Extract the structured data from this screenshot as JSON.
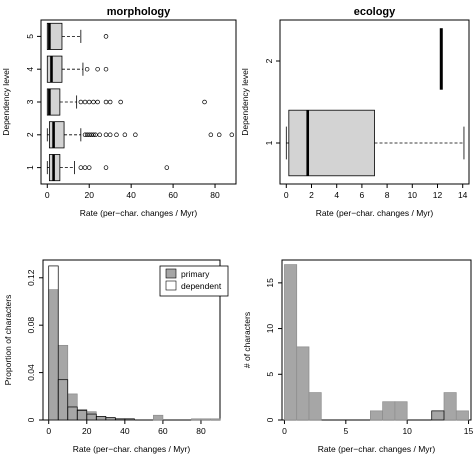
{
  "chart_data": [
    {
      "type": "box",
      "title": "morphology",
      "xlabel": "Rate (per−char. changes / Myr)",
      "ylabel": "Dependency level",
      "xlim": [
        -3,
        90
      ],
      "xticks": [
        0,
        20,
        40,
        60,
        80
      ],
      "categories": [
        "1",
        "2",
        "3",
        "4",
        "5"
      ],
      "boxes": [
        {
          "level": "1",
          "whisker_low": 0,
          "q1": 1,
          "median": 3,
          "q3": 6,
          "whisker_high": 13,
          "outliers": [
            16,
            18,
            20,
            28,
            57
          ]
        },
        {
          "level": "2",
          "whisker_low": 0,
          "q1": 1,
          "median": 3,
          "q3": 8,
          "whisker_high": 16,
          "outliers": [
            18,
            19,
            20,
            21,
            22,
            23,
            25,
            28,
            30,
            33,
            37,
            42,
            78,
            82,
            88
          ]
        },
        {
          "level": "3",
          "whisker_low": 0,
          "q1": 0,
          "median": 1,
          "q3": 6,
          "whisker_high": 14,
          "outliers": [
            16,
            18,
            20,
            22,
            24,
            28,
            30,
            35,
            75
          ]
        },
        {
          "level": "4",
          "whisker_low": 0,
          "q1": 0,
          "median": 2,
          "q3": 7,
          "whisker_high": 17,
          "outliers": [
            19,
            24,
            28
          ]
        },
        {
          "level": "5",
          "whisker_low": 0,
          "q1": 0,
          "median": 1,
          "q3": 7,
          "whisker_high": 16,
          "outliers": [
            28
          ]
        }
      ]
    },
    {
      "type": "box",
      "title": "ecology",
      "xlabel": "Rate (per−char. changes / Myr)",
      "ylabel": "Dependency level",
      "xlim": [
        -0.5,
        14.5
      ],
      "xticks": [
        0,
        2,
        4,
        6,
        8,
        10,
        12,
        14
      ],
      "categories": [
        "1",
        "2"
      ],
      "boxes": [
        {
          "level": "1",
          "whisker_low": 0,
          "q1": 0.2,
          "median": 1.7,
          "q3": 7,
          "whisker_high": 14.1,
          "outliers": []
        },
        {
          "level": "2",
          "whisker_low": 12.3,
          "q1": 12.3,
          "median": 12.3,
          "q3": 12.3,
          "whisker_high": 12.3,
          "outliers": [],
          "span": [
            1.65,
            2.4
          ]
        }
      ]
    },
    {
      "type": "bar",
      "subtype": "histogram",
      "xlabel": "Rate (per−char. changes / Myr)",
      "ylabel": "Proportion of characters",
      "xlim": [
        -3,
        90
      ],
      "ylim": [
        0,
        0.135
      ],
      "xticks": [
        0,
        20,
        40,
        60,
        80
      ],
      "yticks": [
        0.0,
        0.04,
        0.08,
        0.12
      ],
      "bin_width": 5,
      "bin_starts": [
        0,
        5,
        10,
        15,
        20,
        25,
        30,
        35,
        40,
        45,
        50,
        55,
        60,
        65,
        70,
        75,
        80,
        85
      ],
      "legend_position": "top-right",
      "series": [
        {
          "name": "primary",
          "color": "#a6a6a6",
          "values": [
            0.11,
            0.063,
            0.022,
            0.009,
            0.007,
            0.003,
            0.002,
            0.001,
            0.001,
            0,
            0,
            0.004,
            0,
            0,
            0,
            0.001,
            0.001,
            0.001
          ]
        },
        {
          "name": "dependent",
          "color": "#ffffff",
          "values": [
            0.13,
            0.034,
            0.011,
            0.008,
            0.005,
            0.003,
            0.002,
            0.001,
            0.001,
            0,
            0,
            0,
            0,
            0,
            0,
            0,
            0,
            0
          ]
        }
      ]
    },
    {
      "type": "bar",
      "subtype": "histogram",
      "xlabel": "Rate (per−char. changes / Myr)",
      "ylabel": "# of characters",
      "xlim": [
        -0.2,
        15.2
      ],
      "ylim": [
        0,
        17.5
      ],
      "xticks": [
        0,
        5,
        10,
        15
      ],
      "yticks": [
        0,
        5,
        10,
        15
      ],
      "bin_width": 1,
      "bin_starts": [
        0,
        1,
        2,
        3,
        4,
        5,
        6,
        7,
        8,
        9,
        10,
        11,
        12,
        13,
        14
      ],
      "series": [
        {
          "name": "",
          "color": "#a6a6a6",
          "values": [
            17,
            8,
            3,
            0,
            0,
            0,
            0,
            1,
            2,
            2,
            0,
            0,
            1,
            3,
            1
          ]
        },
        {
          "name": "",
          "color": "#ffffff",
          "values": [
            0,
            0,
            0,
            0,
            0,
            0,
            0,
            0,
            0,
            0,
            0,
            0,
            1,
            0,
            0
          ]
        }
      ]
    }
  ]
}
